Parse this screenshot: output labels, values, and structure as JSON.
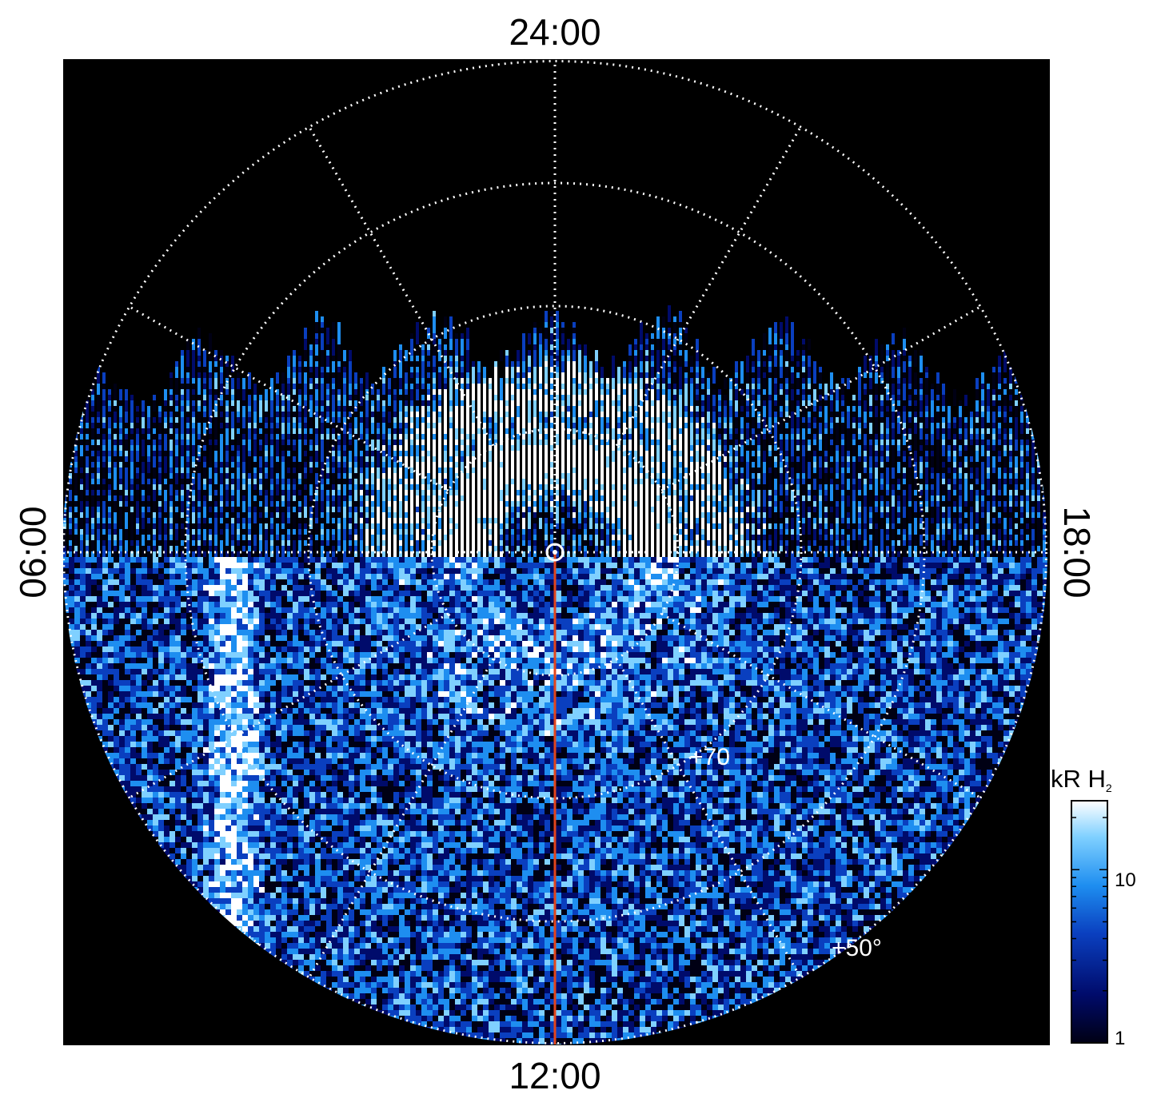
{
  "chart_data": {
    "type": "heatmap",
    "projection": "polar",
    "title": "",
    "local_time_labels": {
      "top": "24:00",
      "bottom": "12:00",
      "left": "06:00",
      "right": "18:00"
    },
    "latitude_circles_deg": [
      80,
      70,
      60,
      50
    ],
    "latitude_labels": [
      {
        "text": "+70",
        "lat": 70
      },
      {
        "text": "+50°",
        "lat": 50
      }
    ],
    "meridians_every_hours": 2,
    "grid": "dotted",
    "grid_color": "#ffffff",
    "center_marker": "circle",
    "center_line_color": "#e2451c",
    "center_line_local_time": "12:00",
    "colorbar": {
      "title_main": "kR H",
      "title_sub": "2",
      "scale": "log",
      "range": [
        1,
        25
      ],
      "ticks": [
        {
          "value": 1,
          "label": "1"
        },
        {
          "value": 10,
          "label": "10"
        }
      ],
      "colors": [
        "#000014",
        "#000b6b",
        "#0a3fbf",
        "#1e8ef0",
        "#7fd0ff",
        "#ffffff"
      ]
    },
    "background_color": "#000000",
    "data_coverage": "dayside hemisphere and partial nightside, sampled noisy emission"
  }
}
